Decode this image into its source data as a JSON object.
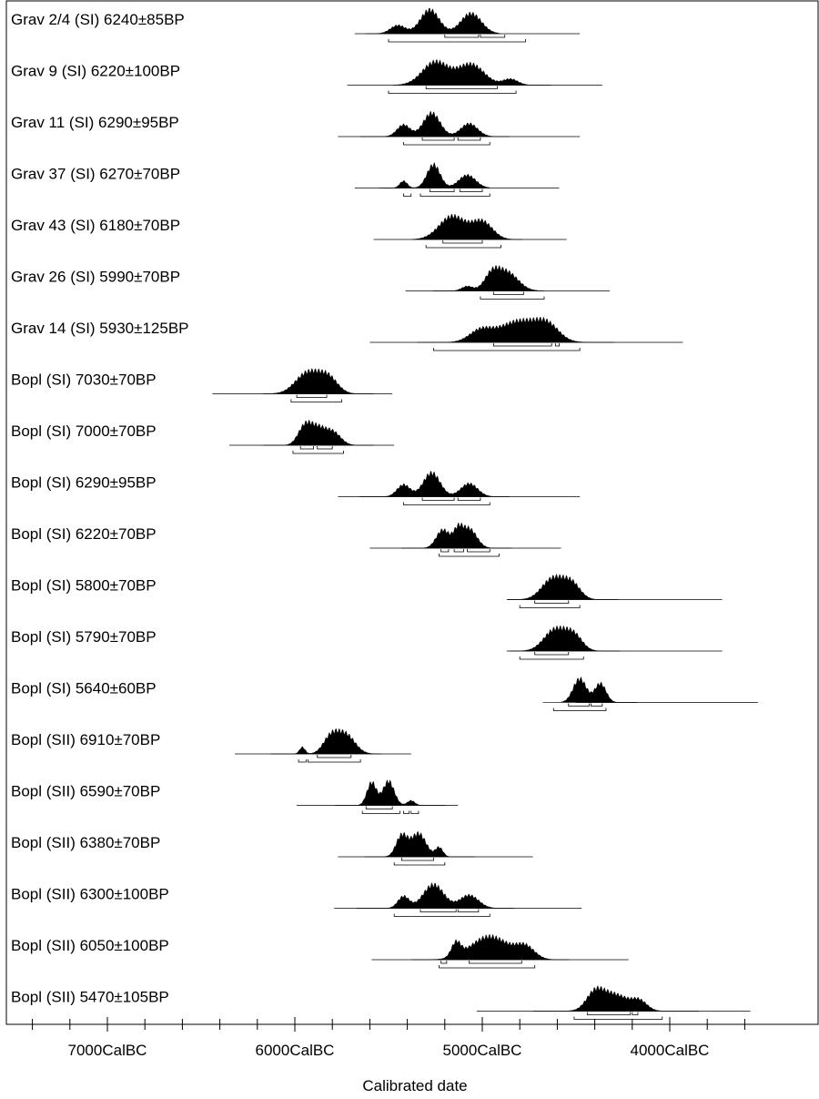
{
  "chart_data": {
    "type": "area",
    "title": "",
    "xlabel": "Calibrated date",
    "ylabel": "",
    "x_axis": {
      "unit": "CalBC",
      "reversed": true,
      "range": [
        7400,
        3600
      ],
      "major_ticks": [
        7000,
        6000,
        5000,
        4000
      ],
      "tick_labels": [
        "7000CalBC",
        "6000CalBC",
        "5000CalBC",
        "4000CalBC"
      ],
      "minor_tick_step": 200
    },
    "colors": {
      "fill": "#000000",
      "line": "#000000",
      "frame": "#000000"
    },
    "samples": [
      {
        "label": "Grav 2/4 (SI)  6240±85BP",
        "bp": 6240,
        "err": 85,
        "range": [
          5680,
          4480
        ],
        "peaks": [
          [
            5280,
            1.0,
            50
          ],
          [
            5060,
            0.85,
            55
          ],
          [
            5450,
            0.35,
            40
          ]
        ],
        "r1": [
          [
            5200,
            5020
          ],
          [
            5010,
            4880
          ]
        ],
        "r2": [
          [
            5500,
            4770
          ]
        ]
      },
      {
        "label": "Grav 9 (SI)  6220±100BP",
        "bp": 6220,
        "err": 100,
        "range": [
          5720,
          4360
        ],
        "peaks": [
          [
            5250,
            0.95,
            70
          ],
          [
            5060,
            0.85,
            70
          ],
          [
            4850,
            0.25,
            40
          ]
        ],
        "r1": [
          [
            5300,
            4920
          ]
        ],
        "r2": [
          [
            5500,
            4820
          ]
        ]
      },
      {
        "label": "Grav 11 (SI)  6290±95BP",
        "bp": 6290,
        "err": 95,
        "range": [
          5770,
          4480
        ],
        "peaks": [
          [
            5270,
            1.0,
            45
          ],
          [
            5070,
            0.55,
            45
          ],
          [
            5420,
            0.5,
            35
          ]
        ],
        "r1": [
          [
            5320,
            5150
          ],
          [
            5130,
            5010
          ]
        ],
        "r2": [
          [
            5420,
            4960
          ]
        ]
      },
      {
        "label": "Grav 37 (SI)  6270±70BP",
        "bp": 6270,
        "err": 70,
        "range": [
          5680,
          4590
        ],
        "peaks": [
          [
            5260,
            1.0,
            35
          ],
          [
            5080,
            0.55,
            45
          ],
          [
            5420,
            0.3,
            20
          ]
        ],
        "r1": [
          [
            5280,
            5150
          ],
          [
            5120,
            5000
          ]
        ],
        "r2": [
          [
            5420,
            5380
          ],
          [
            5330,
            4960
          ]
        ]
      },
      {
        "label": "Grav 43 (SI)  6180±70BP",
        "bp": 6180,
        "err": 70,
        "range": [
          5580,
          4550
        ],
        "peaks": [
          [
            5160,
            1.0,
            70
          ],
          [
            5000,
            0.75,
            55
          ]
        ],
        "r1": [
          [
            5210,
            5000
          ]
        ],
        "r2": [
          [
            5300,
            4900
          ]
        ]
      },
      {
        "label": "Grav 26 (SI)  5990±70BP",
        "bp": 5990,
        "err": 70,
        "range": [
          5410,
          4320
        ],
        "peaks": [
          [
            4870,
            1.0,
            60
          ],
          [
            4950,
            0.75,
            40
          ],
          [
            5080,
            0.25,
            30
          ]
        ],
        "r1": [
          [
            4940,
            4780
          ]
        ],
        "r2": [
          [
            5010,
            4670
          ]
        ]
      },
      {
        "label": "Grav 14 (SI)  5930±125BP",
        "bp": 5930,
        "err": 125,
        "range": [
          5600,
          3930
        ],
        "peaks": [
          [
            4800,
            1.0,
            110
          ],
          [
            4650,
            0.6,
            60
          ],
          [
            5010,
            0.5,
            60
          ]
        ],
        "r1": [
          [
            4940,
            4630
          ],
          [
            4610,
            4590
          ]
        ],
        "r2": [
          [
            5260,
            4480
          ]
        ]
      },
      {
        "label": "Bopl (SI)  7030±70BP",
        "bp": 7030,
        "err": 70,
        "range": [
          6440,
          5480
        ],
        "peaks": [
          [
            5930,
            1.0,
            65
          ],
          [
            5820,
            0.7,
            50
          ]
        ],
        "r1": [
          [
            5990,
            5830
          ]
        ],
        "r2": [
          [
            6020,
            5750
          ]
        ]
      },
      {
        "label": "Bopl (SI)  7000±70BP",
        "bp": 7000,
        "err": 70,
        "range": [
          6350,
          5470
        ],
        "peaks": [
          [
            5880,
            1.0,
            50
          ],
          [
            5950,
            0.85,
            35
          ],
          [
            5790,
            0.6,
            40
          ]
        ],
        "r1": [
          [
            5970,
            5900
          ],
          [
            5880,
            5800
          ]
        ],
        "r2": [
          [
            6010,
            5740
          ]
        ]
      },
      {
        "label": "Bopl (SI)  6290±95BP",
        "bp": 6290,
        "err": 95,
        "range": [
          5770,
          4480
        ],
        "peaks": [
          [
            5270,
            1.0,
            45
          ],
          [
            5070,
            0.55,
            45
          ],
          [
            5420,
            0.5,
            35
          ]
        ],
        "r1": [
          [
            5320,
            5150
          ],
          [
            5130,
            5010
          ]
        ],
        "r2": [
          [
            5420,
            4960
          ]
        ]
      },
      {
        "label": "Bopl (SI)  6220±70BP",
        "bp": 6220,
        "err": 70,
        "range": [
          5600,
          4580
        ],
        "peaks": [
          [
            5070,
            1.0,
            40
          ],
          [
            5210,
            0.95,
            35
          ],
          [
            5130,
            0.8,
            25
          ]
        ],
        "r1": [
          [
            5220,
            5180
          ],
          [
            5150,
            5100
          ],
          [
            5080,
            4960
          ]
        ],
        "r2": [
          [
            5230,
            4910
          ]
        ]
      },
      {
        "label": "Bopl (SI)  5800±70BP",
        "bp": 5800,
        "err": 70,
        "range": [
          4870,
          3720
        ],
        "peaks": [
          [
            4620,
            1.0,
            60
          ],
          [
            4520,
            0.65,
            45
          ]
        ],
        "r1": [
          [
            4720,
            4540
          ]
        ],
        "r2": [
          [
            4800,
            4480
          ]
        ]
      },
      {
        "label": "Bopl (SI)  5790±70BP",
        "bp": 5790,
        "err": 70,
        "range": [
          4870,
          3720
        ],
        "peaks": [
          [
            4610,
            1.0,
            60
          ],
          [
            4510,
            0.65,
            45
          ]
        ],
        "r1": [
          [
            4720,
            4540
          ]
        ],
        "r2": [
          [
            4800,
            4460
          ]
        ]
      },
      {
        "label": "Bopl (SI)  5640±60BP",
        "bp": 5640,
        "err": 60,
        "range": [
          4500,
          3530
        ],
        "peaks": [
          [
            4480,
            1.0,
            35
          ],
          [
            4370,
            0.8,
            30
          ]
        ],
        "r1": [
          [
            4540,
            4430
          ],
          [
            4420,
            4360
          ]
        ],
        "r2": [
          [
            4620,
            4340
          ]
        ]
      },
      {
        "label": "Bopl (SII)  6910±70BP",
        "bp": 6910,
        "err": 70,
        "range": [
          6320,
          5380
        ],
        "peaks": [
          [
            5730,
            1.0,
            50
          ],
          [
            5810,
            0.8,
            40
          ],
          [
            5960,
            0.35,
            15
          ]
        ],
        "r1": [
          [
            5880,
            5700
          ]
        ],
        "r2": [
          [
            5980,
            5940
          ],
          [
            5930,
            5650
          ]
        ]
      },
      {
        "label": "Bopl (SII)  6590±70BP",
        "bp": 6590,
        "err": 70,
        "range": [
          5990,
          5130
        ],
        "peaks": [
          [
            5500,
            1.0,
            30
          ],
          [
            5590,
            0.95,
            25
          ],
          [
            5380,
            0.2,
            20
          ]
        ],
        "r1": [
          [
            5620,
            5480
          ]
        ],
        "r2": [
          [
            5640,
            5440
          ],
          [
            5420,
            5390
          ],
          [
            5380,
            5340
          ]
        ]
      },
      {
        "label": "Bopl (SII)  6380±70BP",
        "bp": 6380,
        "err": 70,
        "range": [
          5770,
          4730
        ],
        "peaks": [
          [
            5340,
            1.0,
            40
          ],
          [
            5430,
            0.9,
            30
          ],
          [
            5230,
            0.4,
            20
          ]
        ],
        "r1": [
          [
            5430,
            5260
          ]
        ],
        "r2": [
          [
            5470,
            5200
          ]
        ]
      },
      {
        "label": "Bopl (SII)  6300±100BP",
        "bp": 6300,
        "err": 100,
        "range": [
          5790,
          4470
        ],
        "peaks": [
          [
            5260,
            1.0,
            55
          ],
          [
            5070,
            0.55,
            50
          ],
          [
            5420,
            0.5,
            30
          ]
        ],
        "r1": [
          [
            5330,
            5140
          ],
          [
            5130,
            5020
          ]
        ],
        "r2": [
          [
            5470,
            4960
          ]
        ]
      },
      {
        "label": "Bopl (SII)  6050±100BP",
        "bp": 6050,
        "err": 100,
        "range": [
          5590,
          4220
        ],
        "peaks": [
          [
            4960,
            1.0,
            100
          ],
          [
            5140,
            0.6,
            25
          ],
          [
            4770,
            0.5,
            50
          ]
        ],
        "r1": [
          [
            5220,
            5190
          ],
          [
            5070,
            4790
          ]
        ],
        "r2": [
          [
            5230,
            4720
          ]
        ]
      },
      {
        "label": "Bopl (SII)  5470±105BP",
        "bp": 5470,
        "err": 105,
        "range": [
          5030,
          3570
        ],
        "peaks": [
          [
            4300,
            1.0,
            80
          ],
          [
            4400,
            0.85,
            45
          ],
          [
            4160,
            0.5,
            40
          ]
        ],
        "r1": [
          [
            4440,
            4210
          ],
          [
            4200,
            4170
          ]
        ],
        "r2": [
          [
            4510,
            4040
          ]
        ]
      }
    ]
  }
}
